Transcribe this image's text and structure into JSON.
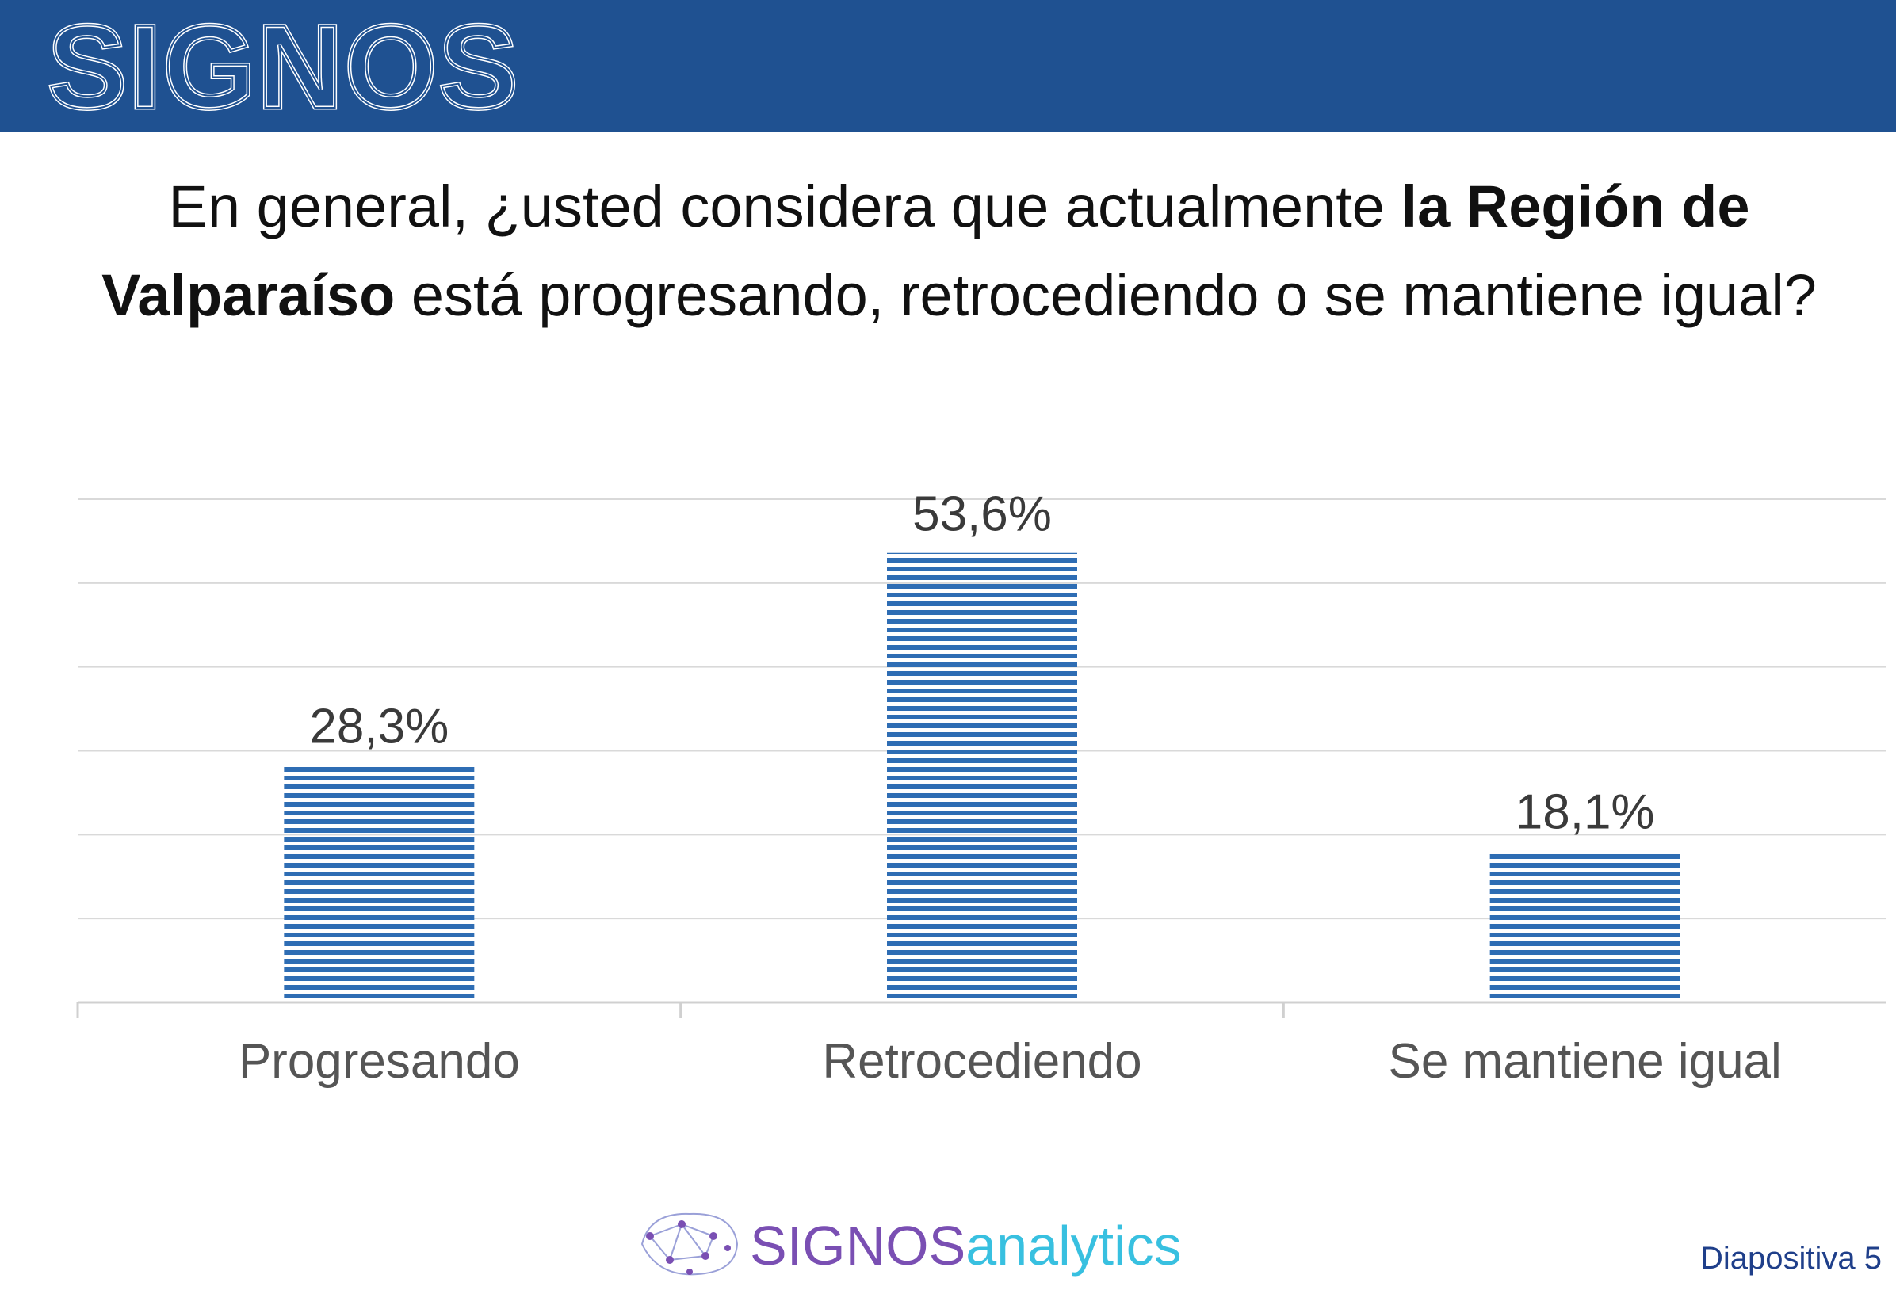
{
  "header": {
    "brand": "SIGNOS",
    "band_color": "#1f5191"
  },
  "question": {
    "part1": "En general, ¿usted considera que actualmente ",
    "bold1": "la Región de Valparaíso",
    "part2": " está progresando,  retrocediendo o se mantiene igual?"
  },
  "chart_data": {
    "type": "bar",
    "categories": [
      "Progresando",
      "Retrocediendo",
      "Se mantiene igual"
    ],
    "values": [
      28.3,
      53.6,
      18.1
    ],
    "value_labels": [
      "28,3%",
      "53,6%",
      "18,1%"
    ],
    "ylim": [
      0,
      60
    ],
    "grid": true,
    "bar_color": "#2e6db4",
    "bar_pattern": "horizontal-stripes",
    "title": "",
    "xlabel": "",
    "ylabel": ""
  },
  "footer": {
    "logo_part1": "SIGNOS",
    "logo_part2": "analytics",
    "logo_icon": "neural-brain-icon",
    "slide_number": "Diapositiva 5"
  }
}
